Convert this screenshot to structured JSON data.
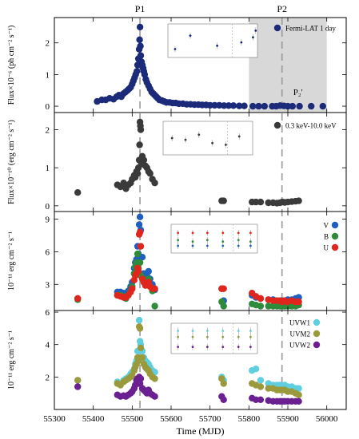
{
  "chart_data": {
    "type": "scatter",
    "xlabel": "Time (MJD)",
    "xlim": [
      55300,
      56050
    ],
    "xticks": [
      55300,
      55400,
      55500,
      55600,
      55700,
      55800,
      55900,
      56000
    ],
    "period_labels": [
      {
        "label": "P1",
        "x": 55520
      },
      {
        "label": "P2",
        "x": 55885
      }
    ],
    "shaded_region": {
      "x0": 55800,
      "x1": 56000,
      "color": "#d8d8d8"
    },
    "panels": [
      {
        "name": "fermi-lat",
        "ylabel": "Flux×10⁻⁶ (ph cm⁻² s⁻¹)",
        "ylim": [
          -0.2,
          2.8
        ],
        "yticks": [
          0,
          1,
          2
        ],
        "annotation": "P₂'",
        "annotation_x": 55885,
        "annotation_y": 0.35,
        "series": [
          {
            "name": "Fermi-LAT 1 day",
            "color": "#1c2a7a",
            "x": [
              55410,
              55422,
              55432,
              55442,
              55452,
              55460,
              55466,
              55472,
              55478,
              55483,
              55488,
              55492,
              55496,
              55500,
              55503,
              55506,
              55509,
              55512,
              55514,
              55516,
              55518,
              55519,
              55520,
              55521,
              55522,
              55524,
              55526,
              55528,
              55530,
              55532,
              55535,
              55538,
              55542,
              55546,
              55550,
              55554,
              55558,
              55562,
              55566,
              55570,
              55576,
              55582,
              55588,
              55596,
              55604,
              55612,
              55620,
              55630,
              55640,
              55650,
              55660,
              55670,
              55680,
              55690,
              55700,
              55712,
              55724,
              55736,
              55748,
              55760,
              55775,
              55788,
              55810,
              55825,
              55840,
              55860,
              55870,
              55880,
              55890,
              55900,
              55912,
              55930,
              55960,
              55990
            ],
            "y": [
              0.15,
              0.2,
              0.2,
              0.25,
              0.22,
              0.3,
              0.35,
              0.3,
              0.4,
              0.45,
              0.5,
              0.55,
              0.6,
              0.7,
              0.8,
              0.9,
              1.0,
              1.1,
              1.3,
              1.5,
              1.8,
              2.1,
              2.5,
              1.9,
              1.6,
              1.4,
              1.3,
              1.2,
              1.1,
              1.0,
              0.85,
              0.75,
              0.65,
              0.55,
              0.45,
              0.4,
              0.35,
              0.3,
              0.25,
              0.2,
              0.18,
              0.15,
              0.12,
              0.12,
              0.1,
              0.1,
              0.08,
              0.08,
              0.06,
              0.06,
              0.05,
              0.05,
              0.04,
              0.04,
              0.03,
              0.03,
              0.03,
              0.02,
              0.02,
              0.02,
              0.01,
              0.01,
              0.0,
              0.0,
              0.0,
              0.0,
              0.0,
              0.02,
              0.01,
              0.0,
              0.0,
              0.0,
              0.0,
              0.0
            ]
          }
        ],
        "inset": true
      },
      {
        "name": "xray",
        "ylabel": "Flux×10⁻¹⁰ (erg cm⁻² s⁻¹)",
        "ylim": [
          -0.15,
          2.45
        ],
        "yticks": [
          0,
          1,
          2
        ],
        "series": [
          {
            "name": "0.3 keV-10.0 keV",
            "color": "#3a3a3a",
            "x": [
              55360,
              55462,
              55470,
              55478,
              55484,
              55490,
              55496,
              55500,
              55505,
              55508,
              55511,
              55514,
              55516,
              55518,
              55519,
              55520,
              55521,
              55522,
              55524,
              55526,
              55530,
              55534,
              55538,
              55542,
              55546,
              55552,
              55558,
              55730,
              55735,
              55808,
              55818,
              55830,
              55850,
              55862,
              55872,
              55880,
              55886,
              55892,
              55900,
              55910,
              55920,
              55928
            ],
            "y": [
              0.35,
              0.55,
              0.5,
              0.6,
              0.45,
              0.55,
              0.6,
              0.7,
              0.8,
              0.75,
              0.9,
              0.85,
              1.0,
              1.2,
              1.6,
              2.2,
              2.1,
              2.0,
              1.1,
              1.3,
              1.2,
              1.05,
              1.0,
              0.9,
              0.85,
              0.7,
              0.6,
              0.13,
              0.13,
              0.1,
              0.1,
              0.1,
              0.08,
              0.08,
              0.07,
              0.08,
              0.1,
              0.09,
              0.1,
              0.11,
              0.12,
              0.13
            ]
          }
        ],
        "inset": true
      },
      {
        "name": "optical",
        "ylabel": "10⁻¹¹ erg cm⁻² s⁻¹",
        "ylim": [
          0.6,
          9.7
        ],
        "yticks": [
          3,
          6,
          9
        ],
        "series": [
          {
            "name": "V",
            "color": "#1f5fbf",
            "x": [
              55360,
              55462,
              55470,
              55478,
              55484,
              55490,
              55496,
              55500,
              55505,
              55508,
              55511,
              55514,
              55516,
              55518,
              55520,
              55522,
              55526,
              55530,
              55534,
              55538,
              55542,
              55546,
              55552,
              55558,
              55730,
              55735,
              55808,
              55818,
              55830,
              55850,
              55862,
              55872,
              55880,
              55886,
              55892,
              55900,
              55910,
              55920,
              55928
            ],
            "y": [
              1.7,
              2.3,
              2.3,
              2.2,
              2.0,
              2.4,
              2.8,
              3.2,
              4.5,
              5.0,
              5.3,
              6.5,
              5.8,
              8.5,
              9.2,
              8.0,
              5.5,
              4.0,
              3.5,
              3.8,
              4.2,
              3.5,
              3.0,
              2.5,
              2.6,
              1.5,
              2.0,
              1.8,
              1.7,
              1.6,
              1.6,
              1.5,
              1.5,
              1.5,
              1.5,
              1.6,
              1.6,
              1.7,
              1.8
            ]
          },
          {
            "name": "B",
            "color": "#2e8b3a",
            "x": [
              55360,
              55462,
              55470,
              55478,
              55484,
              55490,
              55496,
              55500,
              55505,
              55508,
              55511,
              55514,
              55516,
              55518,
              55520,
              55522,
              55526,
              55530,
              55534,
              55538,
              55542,
              55546,
              55552,
              55558,
              55730,
              55735,
              55808,
              55818,
              55830,
              55850,
              55862,
              55872,
              55880,
              55886,
              55892,
              55900,
              55910,
              55920,
              55928
            ],
            "y": [
              1.6,
              2.0,
              2.0,
              1.9,
              1.7,
              2.0,
              2.4,
              2.8,
              4.0,
              4.6,
              5.0,
              5.8,
              4.5,
              4.0,
              5.0,
              3.8,
              3.6,
              3.2,
              3.0,
              3.2,
              3.5,
              2.8,
              2.4,
              1.0,
              1.4,
              1.0,
              1.2,
              1.1,
              1.0,
              1.0,
              1.0,
              1.0,
              1.0,
              1.0,
              1.0,
              1.0,
              1.0,
              1.0,
              1.1
            ]
          },
          {
            "name": "U",
            "color": "#e0261c",
            "x": [
              55360,
              55462,
              55470,
              55478,
              55484,
              55490,
              55496,
              55500,
              55505,
              55508,
              55511,
              55514,
              55516,
              55518,
              55520,
              55522,
              55526,
              55530,
              55534,
              55538,
              55542,
              55546,
              55552,
              55558,
              55730,
              55735,
              55808,
              55818,
              55830,
              55850,
              55862,
              55872,
              55880,
              55886,
              55892,
              55900,
              55910,
              55920,
              55928
            ],
            "y": [
              1.7,
              2.0,
              1.9,
              1.8,
              1.8,
              2.0,
              2.3,
              2.6,
              3.4,
              3.8,
              4.0,
              4.5,
              4.2,
              7.6,
              7.8,
              6.5,
              3.5,
              3.2,
              2.9,
              3.0,
              3.2,
              2.8,
              2.6,
              2.6,
              2.6,
              2.6,
              2.2,
              1.9,
              1.7,
              1.6,
              1.5,
              1.5,
              1.5,
              1.4,
              1.5,
              1.4,
              1.5,
              1.4,
              1.4
            ]
          }
        ],
        "inset": true
      },
      {
        "name": "uv",
        "ylabel": "10⁻¹¹ erg cm⁻² s⁻¹",
        "ylim": [
          0.0,
          6.1
        ],
        "yticks": [
          2,
          4,
          6
        ],
        "series": [
          {
            "name": "UVW1",
            "color": "#5fcfe0",
            "x": [
              55360,
              55462,
              55470,
              55478,
              55484,
              55490,
              55496,
              55500,
              55505,
              55508,
              55511,
              55514,
              55516,
              55518,
              55520,
              55522,
              55526,
              55530,
              55534,
              55538,
              55542,
              55546,
              55552,
              55558,
              55730,
              55735,
              55808,
              55818,
              55830,
              55850,
              55862,
              55872,
              55880,
              55886,
              55892,
              55900,
              55910,
              55920,
              55928
            ],
            "y": [
              1.8,
              1.7,
              1.6,
              1.8,
              1.9,
              2.0,
              2.2,
              2.3,
              2.5,
              2.8,
              3.0,
              3.6,
              3.2,
              5.5,
              4.2,
              4.0,
              3.6,
              3.2,
              3.0,
              2.9,
              2.8,
              2.6,
              2.4,
              2.3,
              2.0,
              1.8,
              2.4,
              2.5,
              1.8,
              1.6,
              1.5,
              1.5,
              1.5,
              1.4,
              1.5,
              1.4,
              1.4,
              1.3,
              1.3
            ]
          },
          {
            "name": "UVM2",
            "color": "#9a9a3c",
            "x": [
              55360,
              55462,
              55470,
              55478,
              55484,
              55490,
              55496,
              55500,
              55505,
              55508,
              55511,
              55514,
              55516,
              55518,
              55520,
              55522,
              55526,
              55530,
              55534,
              55538,
              55542,
              55546,
              55552,
              55558,
              55730,
              55735,
              55808,
              55818,
              55830,
              55850,
              55862,
              55872,
              55880,
              55886,
              55892,
              55900,
              55910,
              55920,
              55928
            ],
            "y": [
              1.8,
              1.6,
              1.5,
              1.7,
              1.8,
              1.9,
              2.0,
              2.1,
              2.4,
              2.6,
              2.8,
              3.2,
              3.0,
              5.1,
              5.0,
              3.8,
              3.2,
              2.8,
              2.6,
              2.5,
              2.4,
              2.2,
              2.0,
              1.9,
              1.9,
              1.6,
              1.6,
              1.5,
              1.4,
              1.3,
              1.3,
              1.2,
              1.2,
              1.2,
              1.2,
              1.1,
              1.1,
              1.0,
              0.9
            ]
          },
          {
            "name": "UVW2",
            "color": "#6a2090",
            "x": [
              55360,
              55462,
              55470,
              55478,
              55484,
              55490,
              55496,
              55500,
              55505,
              55508,
              55511,
              55514,
              55516,
              55518,
              55520,
              55522,
              55526,
              55530,
              55534,
              55538,
              55542,
              55546,
              55552,
              55558,
              55730,
              55735,
              55808,
              55818,
              55830,
              55850,
              55862,
              55872,
              55880,
              55886,
              55892,
              55900,
              55910,
              55920,
              55928
            ],
            "y": [
              1.4,
              0.9,
              0.8,
              0.85,
              0.8,
              0.9,
              1.0,
              1.1,
              1.3,
              1.5,
              1.8,
              1.9,
              1.6,
              2.0,
              1.6,
              1.9,
              1.3,
              1.2,
              1.1,
              1.0,
              1.2,
              1.0,
              0.9,
              0.8,
              0.8,
              0.6,
              0.7,
              0.6,
              0.6,
              0.55,
              0.5,
              0.5,
              0.5,
              0.5,
              0.5,
              0.5,
              0.5,
              0.5,
              0.5
            ]
          }
        ],
        "inset": true
      }
    ]
  }
}
